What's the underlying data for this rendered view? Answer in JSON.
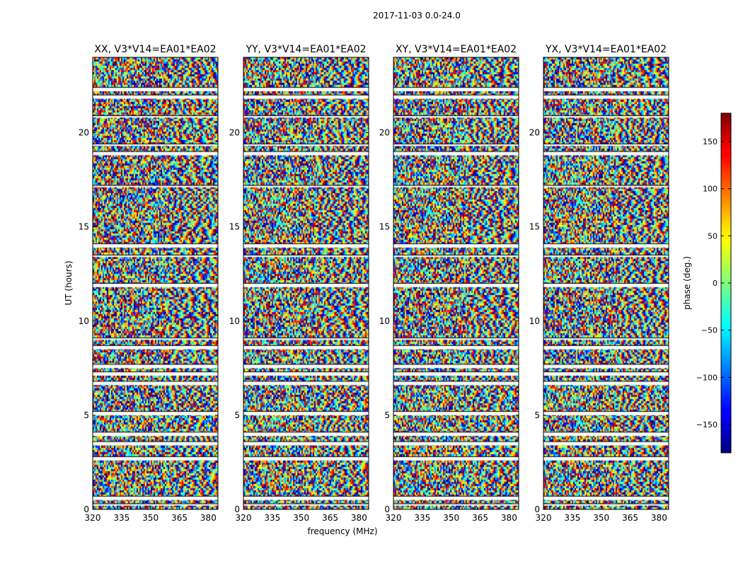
{
  "figure": {
    "suptitle": "2017-11-03 0.0-24.0"
  },
  "chart_data": {
    "type": "heatmap",
    "panels": [
      {
        "title": "XX, V3*V14=EA01*EA02"
      },
      {
        "title": "YY, V3*V14=EA01*EA02"
      },
      {
        "title": "XY, V3*V14=EA01*EA02"
      },
      {
        "title": "YX, V3*V14=EA01*EA02"
      }
    ],
    "xlabel": "frequency (MHz)",
    "ylabel": "UT (hours)",
    "xlim": [
      320,
      385
    ],
    "ylim": [
      0,
      24
    ],
    "xticks": [
      320,
      335,
      350,
      365,
      380
    ],
    "yticks": [
      0,
      5,
      10,
      15,
      20
    ],
    "colorbar": {
      "label": "phase (deg.)",
      "vmin": -180,
      "vmax": 180,
      "ticks": [
        -150,
        -100,
        -50,
        0,
        50,
        100,
        150
      ],
      "tick_labels": [
        "−150",
        "−100",
        "−50",
        "0",
        "50",
        "100",
        "150"
      ],
      "colormap": "jet"
    },
    "flagged_time_ranges_hours": [
      [
        0.2,
        0.3
      ],
      [
        0.5,
        0.7
      ],
      [
        2.6,
        2.8
      ],
      [
        3.4,
        3.6
      ],
      [
        3.9,
        4.1
      ],
      [
        5.0,
        5.2
      ],
      [
        6.6,
        6.8
      ],
      [
        7.1,
        7.3
      ],
      [
        7.5,
        7.7
      ],
      [
        8.5,
        8.7
      ],
      [
        9.0,
        9.1
      ],
      [
        11.8,
        12.0
      ],
      [
        13.4,
        13.5
      ],
      [
        13.9,
        14.1
      ],
      [
        17.1,
        17.2
      ],
      [
        18.8,
        19.0
      ],
      [
        19.3,
        19.4
      ],
      [
        20.8,
        20.9
      ],
      [
        21.8,
        22.0
      ],
      [
        22.2,
        22.4
      ]
    ]
  }
}
